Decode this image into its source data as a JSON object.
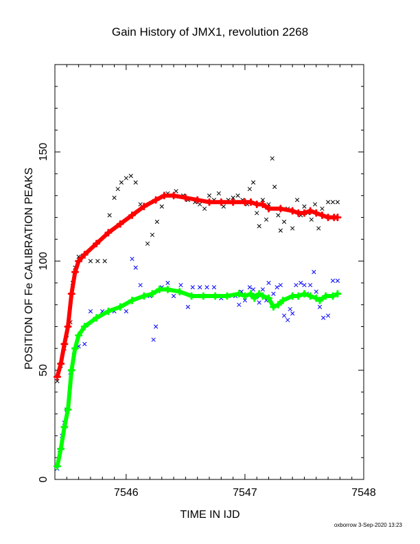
{
  "chart_data": {
    "type": "scatter",
    "title": "Gain History of JMX1, revolution 2268",
    "xlabel": "TIME IN IJD",
    "ylabel": "POSITION OF Fe CALIBRATION PEAKS",
    "xlim": [
      7545.4,
      7548
    ],
    "ylim": [
      0,
      190
    ],
    "xticks": [
      7546,
      7547,
      7548
    ],
    "yticks": [
      0,
      50,
      100,
      150
    ],
    "grid": false,
    "legend": "none",
    "colors": {
      "high_energy_points": "#000000",
      "low_energy_points": "#0000ff",
      "high_energy_fit": "#ff0000",
      "low_energy_fit": "#00ff00"
    },
    "series": [
      {
        "marker": "x",
        "color": "#000000",
        "points": [
          [
            7545.42,
            45
          ],
          [
            7545.45,
            52
          ],
          [
            7545.48,
            60
          ],
          [
            7545.5,
            66
          ],
          [
            7545.53,
            72
          ],
          [
            7545.55,
            90
          ],
          [
            7545.57,
            97
          ],
          [
            7545.6,
            102
          ],
          [
            7545.64,
            102
          ],
          [
            7545.7,
            100
          ],
          [
            7545.76,
            100
          ],
          [
            7545.82,
            100
          ],
          [
            7545.86,
            121
          ],
          [
            7545.9,
            129
          ],
          [
            7545.93,
            133
          ],
          [
            7545.96,
            136
          ],
          [
            7546.0,
            138
          ],
          [
            7546.04,
            139
          ],
          [
            7546.08,
            136
          ],
          [
            7546.12,
            126
          ],
          [
            7546.18,
            108
          ],
          [
            7546.22,
            112
          ],
          [
            7546.26,
            118
          ],
          [
            7546.3,
            125
          ],
          [
            7546.35,
            131
          ],
          [
            7546.42,
            132
          ],
          [
            7546.48,
            130
          ],
          [
            7546.52,
            128
          ],
          [
            7546.58,
            127
          ],
          [
            7546.62,
            126
          ],
          [
            7546.66,
            124
          ],
          [
            7546.7,
            130
          ],
          [
            7546.74,
            128
          ],
          [
            7546.78,
            131
          ],
          [
            7546.82,
            125
          ],
          [
            7546.86,
            128
          ],
          [
            7546.9,
            129
          ],
          [
            7546.94,
            130
          ],
          [
            7546.98,
            128
          ],
          [
            7547.02,
            126
          ],
          [
            7547.04,
            133
          ],
          [
            7547.07,
            136
          ],
          [
            7547.1,
            122
          ],
          [
            7547.12,
            116
          ],
          [
            7547.15,
            128
          ],
          [
            7547.18,
            119
          ],
          [
            7547.2,
            126
          ],
          [
            7547.23,
            147
          ],
          [
            7547.25,
            134
          ],
          [
            7547.28,
            121
          ],
          [
            7547.3,
            114
          ],
          [
            7547.33,
            118
          ],
          [
            7547.36,
            124
          ],
          [
            7547.4,
            115
          ],
          [
            7547.44,
            128
          ],
          [
            7547.47,
            121
          ],
          [
            7547.5,
            125
          ],
          [
            7547.53,
            122
          ],
          [
            7547.56,
            119
          ],
          [
            7547.59,
            126
          ],
          [
            7547.62,
            115
          ],
          [
            7547.65,
            124
          ],
          [
            7547.7,
            127
          ],
          [
            7547.74,
            127
          ],
          [
            7547.78,
            127
          ]
        ]
      },
      {
        "marker": "x",
        "color": "#0000ff",
        "points": [
          [
            7545.42,
            5
          ],
          [
            7545.44,
            12
          ],
          [
            7545.46,
            20
          ],
          [
            7545.48,
            26
          ],
          [
            7545.5,
            32
          ],
          [
            7545.53,
            49
          ],
          [
            7545.56,
            57
          ],
          [
            7545.6,
            61
          ],
          [
            7545.65,
            62
          ],
          [
            7545.7,
            77
          ],
          [
            7545.8,
            77
          ],
          [
            7545.9,
            77
          ],
          [
            7546.0,
            77
          ],
          [
            7546.05,
            101
          ],
          [
            7546.08,
            97
          ],
          [
            7546.12,
            89
          ],
          [
            7546.2,
            84
          ],
          [
            7546.23,
            64
          ],
          [
            7546.25,
            70
          ],
          [
            7546.3,
            88
          ],
          [
            7546.35,
            90
          ],
          [
            7546.4,
            84
          ],
          [
            7546.46,
            89
          ],
          [
            7546.52,
            79
          ],
          [
            7546.56,
            88
          ],
          [
            7546.62,
            88
          ],
          [
            7546.68,
            88
          ],
          [
            7546.74,
            88
          ],
          [
            7546.8,
            83
          ],
          [
            7546.86,
            84
          ],
          [
            7546.92,
            84
          ],
          [
            7546.95,
            80
          ],
          [
            7546.97,
            86
          ],
          [
            7547.0,
            82
          ],
          [
            7547.04,
            88
          ],
          [
            7547.07,
            87
          ],
          [
            7547.1,
            84
          ],
          [
            7547.12,
            81
          ],
          [
            7547.15,
            87
          ],
          [
            7547.18,
            82
          ],
          [
            7547.2,
            90
          ],
          [
            7547.24,
            85
          ],
          [
            7547.27,
            88
          ],
          [
            7547.3,
            89
          ],
          [
            7547.33,
            75
          ],
          [
            7547.36,
            73
          ],
          [
            7547.38,
            78
          ],
          [
            7547.4,
            76
          ],
          [
            7547.43,
            89
          ],
          [
            7547.47,
            90
          ],
          [
            7547.5,
            89
          ],
          [
            7547.52,
            85
          ],
          [
            7547.55,
            89
          ],
          [
            7547.58,
            95
          ],
          [
            7547.6,
            86
          ],
          [
            7547.63,
            79
          ],
          [
            7547.66,
            74
          ],
          [
            7547.7,
            75
          ],
          [
            7547.74,
            91
          ],
          [
            7547.78,
            91
          ]
        ]
      },
      {
        "marker": "+",
        "color": "#ff0000",
        "points": [
          [
            7545.42,
            47
          ],
          [
            7545.45,
            53
          ],
          [
            7545.48,
            62
          ],
          [
            7545.51,
            70
          ],
          [
            7545.54,
            85
          ],
          [
            7545.57,
            95
          ],
          [
            7545.6,
            100
          ],
          [
            7545.65,
            103
          ],
          [
            7545.75,
            108
          ],
          [
            7545.85,
            113
          ],
          [
            7545.95,
            117
          ],
          [
            7546.05,
            121
          ],
          [
            7546.15,
            125
          ],
          [
            7546.25,
            128
          ],
          [
            7546.32,
            130
          ],
          [
            7546.4,
            130
          ],
          [
            7546.5,
            129
          ],
          [
            7546.6,
            128
          ],
          [
            7546.7,
            127
          ],
          [
            7546.8,
            127
          ],
          [
            7546.9,
            127
          ],
          [
            7547.0,
            127
          ],
          [
            7547.05,
            127
          ],
          [
            7547.1,
            126
          ],
          [
            7547.15,
            126
          ],
          [
            7547.2,
            124
          ],
          [
            7547.3,
            124
          ],
          [
            7547.4,
            123
          ],
          [
            7547.45,
            122
          ],
          [
            7547.5,
            122
          ],
          [
            7547.55,
            123
          ],
          [
            7547.6,
            122
          ],
          [
            7547.65,
            121
          ],
          [
            7547.7,
            120
          ],
          [
            7547.75,
            120
          ],
          [
            7547.78,
            120
          ]
        ]
      },
      {
        "marker": "+",
        "color": "#00ff00",
        "points": [
          [
            7545.42,
            6
          ],
          [
            7545.45,
            14
          ],
          [
            7545.48,
            24
          ],
          [
            7545.51,
            32
          ],
          [
            7545.54,
            50
          ],
          [
            7545.57,
            60
          ],
          [
            7545.6,
            66
          ],
          [
            7545.65,
            70
          ],
          [
            7545.75,
            74
          ],
          [
            7545.85,
            77
          ],
          [
            7545.95,
            79
          ],
          [
            7546.05,
            82
          ],
          [
            7546.15,
            84
          ],
          [
            7546.22,
            85
          ],
          [
            7546.28,
            87
          ],
          [
            7546.35,
            87
          ],
          [
            7546.45,
            86
          ],
          [
            7546.55,
            84
          ],
          [
            7546.65,
            84
          ],
          [
            7546.75,
            84
          ],
          [
            7546.85,
            84
          ],
          [
            7546.95,
            85
          ],
          [
            7547.0,
            84
          ],
          [
            7547.05,
            85
          ],
          [
            7547.08,
            83
          ],
          [
            7547.12,
            85
          ],
          [
            7547.15,
            84
          ],
          [
            7547.2,
            83
          ],
          [
            7547.24,
            79
          ],
          [
            7547.28,
            80
          ],
          [
            7547.32,
            82
          ],
          [
            7547.4,
            84
          ],
          [
            7547.45,
            84
          ],
          [
            7547.5,
            85
          ],
          [
            7547.55,
            84
          ],
          [
            7547.6,
            83
          ],
          [
            7547.63,
            82
          ],
          [
            7547.68,
            84
          ],
          [
            7547.74,
            84
          ],
          [
            7547.78,
            85
          ]
        ]
      }
    ]
  },
  "footer": "oxborrow  3-Sep-2020 13:23"
}
